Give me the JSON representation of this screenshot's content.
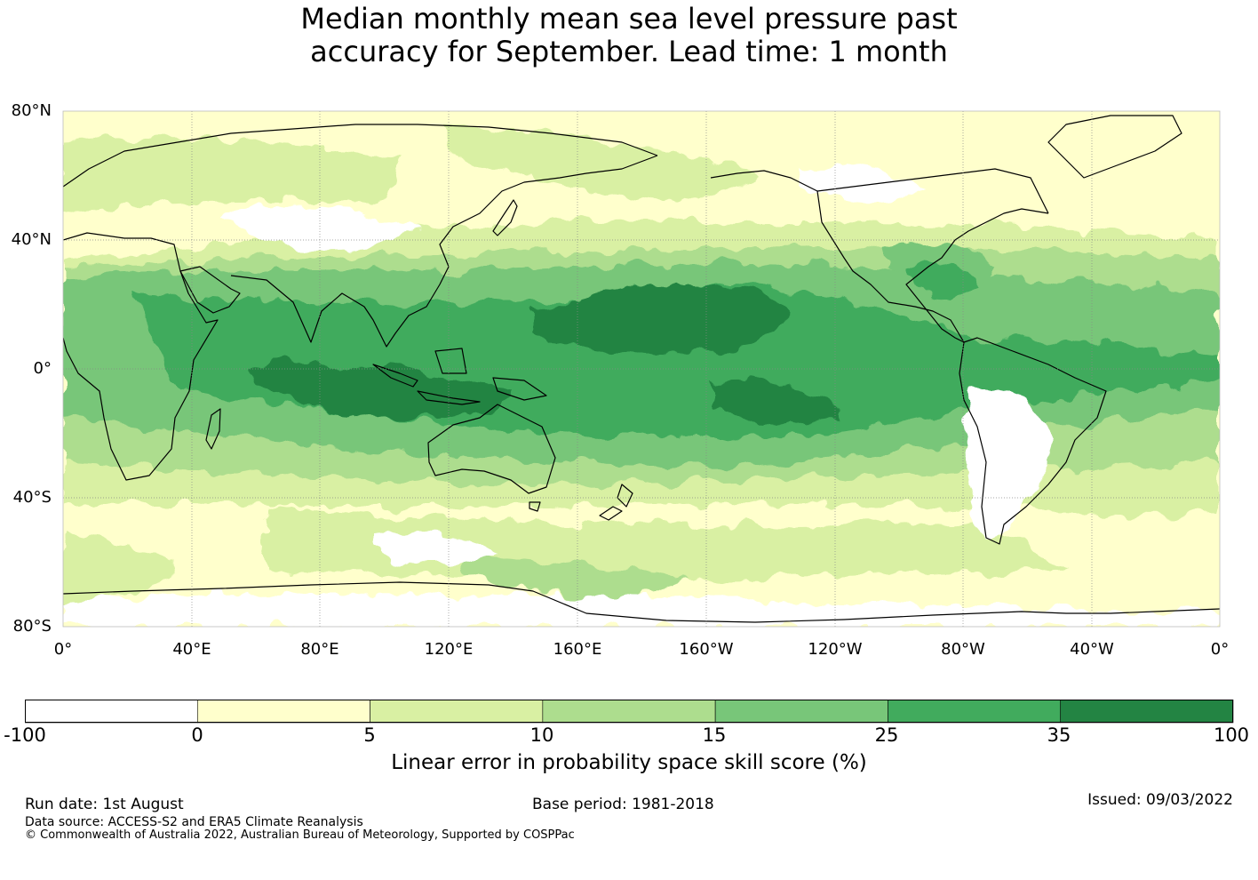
{
  "title": {
    "line1": "Median monthly mean sea level pressure past",
    "line2": "accuracy for September. Lead time: 1 month"
  },
  "map": {
    "projection": "plate-carree",
    "central_longitude": "180°",
    "ocean_default_color": "#ffffcc",
    "coastline_color": "#000000",
    "gridline_color": "#888888",
    "lat_labels": [
      "80°N",
      "40°N",
      "0°",
      "40°S",
      "80°S"
    ],
    "lon_labels": [
      "0°",
      "40°E",
      "80°E",
      "120°E",
      "160°E",
      "160°W",
      "120°W",
      "80°W",
      "40°W",
      "0°"
    ]
  },
  "colorbar": {
    "label": "Linear error in probability space skill score (%)",
    "ticks": [
      "-100",
      "0",
      "5",
      "10",
      "15",
      "25",
      "35",
      "100"
    ],
    "colors": [
      "#ffffff",
      "#ffffcc",
      "#d9f0a3",
      "#addd8e",
      "#78c679",
      "#41ab5d",
      "#238443"
    ]
  },
  "footer": {
    "run_date": "Run date: 1st August",
    "base_period": "Base period: 1981-2018",
    "issued": "Issued: 09/03/2022",
    "data_source": "Data source: ACCESS-S2 and ERA5 Climate Reanalysis",
    "copyright": "© Commonwealth of Australia 2022, Australian Bureau of Meteorology, Supported by COSPPac"
  }
}
